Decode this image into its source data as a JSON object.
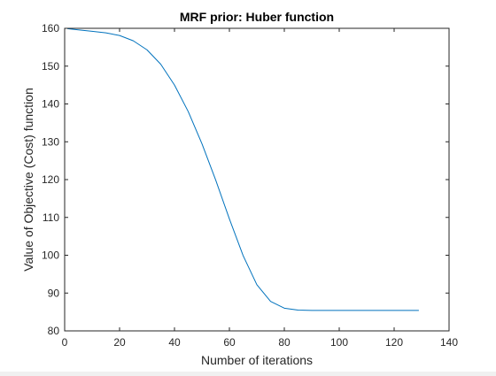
{
  "chart_data": {
    "type": "line",
    "title": "MRF prior: Huber function",
    "xlabel": "Number of iterations",
    "ylabel": "Value of Objective (Cost) function",
    "xlim": [
      0,
      140
    ],
    "ylim": [
      80,
      160
    ],
    "xticks": [
      0,
      20,
      40,
      60,
      80,
      100,
      120,
      140
    ],
    "yticks": [
      80,
      90,
      100,
      110,
      120,
      130,
      140,
      150,
      160
    ],
    "grid": false,
    "legend": "none",
    "series": [
      {
        "color": "#0072bd",
        "x": [
          1,
          5,
          10,
          15,
          20,
          25,
          30,
          35,
          40,
          45,
          50,
          55,
          60,
          65,
          70,
          75,
          80,
          85,
          90,
          95,
          100,
          110,
          120,
          129
        ],
        "y": [
          159.9,
          159.6,
          159.2,
          158.8,
          158.1,
          156.7,
          154.3,
          150.5,
          145.0,
          138.0,
          129.5,
          119.9,
          109.6,
          99.9,
          92.2,
          87.8,
          86.0,
          85.5,
          85.4,
          85.4,
          85.4,
          85.4,
          85.4,
          85.4
        ]
      }
    ]
  }
}
